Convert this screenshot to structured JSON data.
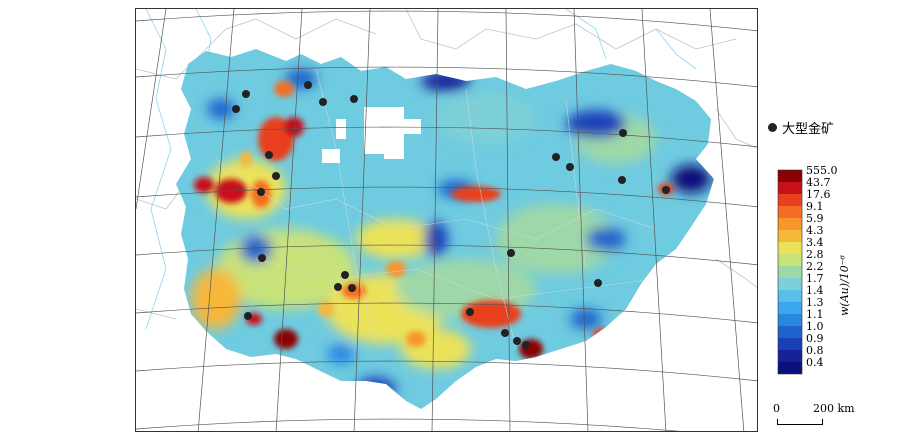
{
  "legend": {
    "deposit_label": "大型金矿",
    "unit_label": "w(Au)/10⁻⁶",
    "bins": [
      {
        "label": "555.0",
        "color": "#8b0000"
      },
      {
        "label": "43.7",
        "color": "#c8101a"
      },
      {
        "label": "17.6",
        "color": "#e8401e"
      },
      {
        "label": "9.1",
        "color": "#f36e23"
      },
      {
        "label": "5.9",
        "color": "#f7962b"
      },
      {
        "label": "4.3",
        "color": "#f6b73a"
      },
      {
        "label": "3.4",
        "color": "#ece25a"
      },
      {
        "label": "2.8",
        "color": "#c8e27a"
      },
      {
        "label": "2.2",
        "color": "#9fd8a8"
      },
      {
        "label": "1.7",
        "color": "#7ed0d8"
      },
      {
        "label": "1.4",
        "color": "#57bfe8"
      },
      {
        "label": "1.3",
        "color": "#3aa6ec"
      },
      {
        "label": "1.1",
        "color": "#2a86e0"
      },
      {
        "label": "1.0",
        "color": "#1f62cc"
      },
      {
        "label": "0.9",
        "color": "#1a3fb8"
      },
      {
        "label": "0.8",
        "color": "#14239a"
      },
      {
        "label": "0.4",
        "color": "#0d0f7a"
      }
    ]
  },
  "scale": {
    "zero": "0",
    "distance": "200 km"
  },
  "colors": {
    "background_blue": "#57bfe8",
    "deposit_dot": "#222222",
    "graticule": "#555555",
    "rivers": "#5fc7e8",
    "borders": "#bbbbbb"
  }
}
